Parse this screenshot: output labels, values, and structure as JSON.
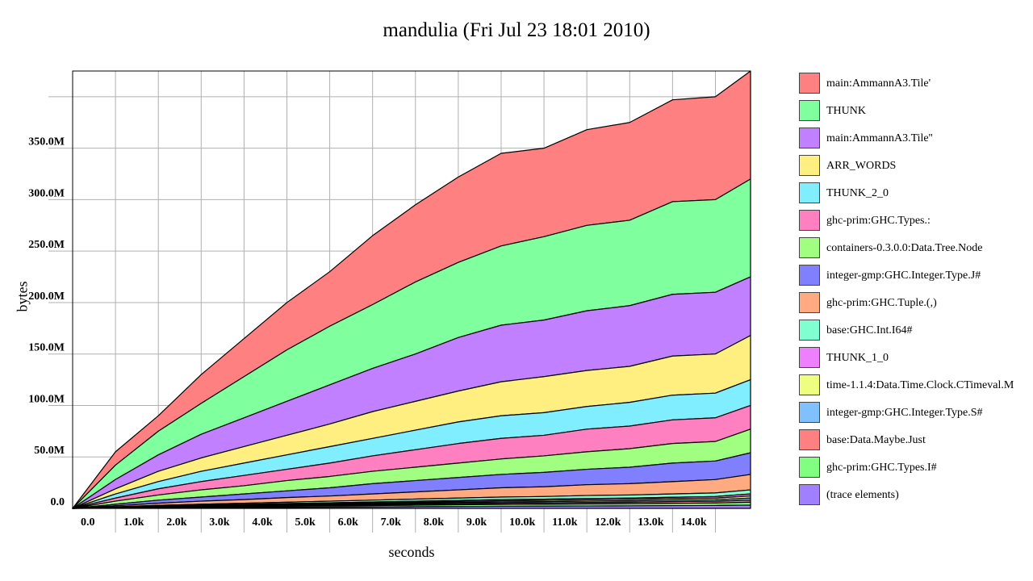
{
  "chart_data": {
    "type": "area",
    "title": "mandulia (Fri Jul 23 18:01 2010)",
    "xlabel": "seconds",
    "ylabel": "bytes",
    "x_ticks": [
      "0.0",
      "1.0k",
      "2.0k",
      "3.0k",
      "4.0k",
      "5.0k",
      "6.0k",
      "7.0k",
      "8.0k",
      "9.0k",
      "10.0k",
      "11.0k",
      "12.0k",
      "13.0k",
      "14.0k"
    ],
    "y_ticks": [
      "0.0",
      "50.0M",
      "100.0M",
      "150.0M",
      "200.0M",
      "250.0M",
      "300.0M",
      "350.0M"
    ],
    "xlim": [
      0,
      15820
    ],
    "ylim": [
      0,
      425000000
    ],
    "x": [
      0,
      1000,
      2000,
      3000,
      4000,
      5000,
      6000,
      7000,
      8000,
      9000,
      10000,
      11000,
      12000,
      13000,
      14000,
      15000,
      15820
    ],
    "series": [
      {
        "name": "main:AmmannA3.Tile'",
        "color": "#ff8080",
        "values": [
          0,
          55,
          90,
          130,
          165,
          200,
          230,
          265,
          295,
          322,
          345,
          350,
          368,
          375,
          397,
          400,
          425
        ]
      },
      {
        "name": "THUNK",
        "color": "#80ff9f",
        "values": [
          0,
          42,
          75,
          102,
          128,
          154,
          177,
          198,
          220,
          239,
          255,
          264,
          275,
          280,
          298,
          300,
          320
        ]
      },
      {
        "name": "main:AmmannA3.Tile''",
        "color": "#c080ff",
        "values": [
          0,
          28,
          52,
          72,
          88,
          104,
          120,
          136,
          150,
          166,
          178,
          183,
          192,
          197,
          208,
          210,
          225
        ]
      },
      {
        "name": "ARR_WORDS",
        "color": "#ffee80",
        "values": [
          0,
          19,
          36,
          49,
          60,
          71,
          82,
          94,
          104,
          114,
          123,
          128,
          134,
          138,
          148,
          150,
          168
        ]
      },
      {
        "name": "THUNK_2_0",
        "color": "#80eeff",
        "values": [
          0,
          14,
          26,
          36,
          44,
          52,
          60,
          68,
          76,
          84,
          90,
          93,
          99,
          103,
          110,
          112,
          125
        ]
      },
      {
        "name": "ghc-prim:GHC.Types.:",
        "color": "#ff80c0",
        "values": [
          0,
          10,
          19,
          26,
          32,
          38,
          44,
          51,
          57,
          63,
          68,
          71,
          77,
          80,
          86,
          88,
          100
        ]
      },
      {
        "name": "containers-0.3.0.0:Data.Tree.Node",
        "color": "#a0ff80",
        "values": [
          0,
          7,
          13,
          18,
          22,
          27,
          31,
          36,
          40,
          44,
          48,
          51,
          55,
          58,
          63,
          65,
          77
        ]
      },
      {
        "name": "integer-gmp:GHC.Integer.Type.J#",
        "color": "#8080ff",
        "values": [
          0,
          4,
          8,
          11,
          14,
          17,
          20,
          24,
          27,
          30,
          33,
          35,
          38,
          40,
          44,
          46,
          54
        ]
      },
      {
        "name": "ghc-prim:GHC.Tuple.(,)",
        "color": "#ffaa80",
        "values": [
          0,
          2.5,
          5,
          7,
          8.5,
          10.5,
          12,
          14,
          16,
          18,
          20,
          21,
          23,
          24,
          26,
          28,
          33
        ]
      },
      {
        "name": "base:GHC.Int.I64#",
        "color": "#80ffd0",
        "values": [
          0,
          1.5,
          3,
          4,
          5,
          6,
          7,
          8,
          9,
          10,
          11,
          11.5,
          12.5,
          13,
          14,
          15,
          18
        ]
      },
      {
        "name": "THUNK_1_0",
        "color": "#ee80ff",
        "values": [
          0,
          1.2,
          2.3,
          3.1,
          3.9,
          4.7,
          5.4,
          6.2,
          7,
          7.8,
          8.5,
          8.9,
          9.6,
          10,
          10.8,
          11.5,
          14
        ]
      },
      {
        "name": "time-1.1.4:Data.Time.Clock.CTimeval.M",
        "color": "#eeff80",
        "values": [
          0,
          1,
          1.9,
          2.6,
          3.3,
          4,
          4.6,
          5.3,
          6,
          6.7,
          7.3,
          7.7,
          8.3,
          8.7,
          9.4,
          10,
          12
        ]
      },
      {
        "name": "integer-gmp:GHC.Integer.Type.S#",
        "color": "#80c0ff",
        "values": [
          0,
          0.8,
          1.6,
          2.2,
          2.8,
          3.4,
          3.9,
          4.5,
          5.1,
          5.7,
          6.2,
          6.5,
          7,
          7.3,
          7.9,
          8.4,
          10
        ]
      },
      {
        "name": "base:Data.Maybe.Just",
        "color": "#ff8080",
        "values": [
          0,
          0.6,
          1.2,
          1.7,
          2.2,
          2.7,
          3.1,
          3.6,
          4.1,
          4.6,
          5,
          5.3,
          5.7,
          6,
          6.5,
          6.9,
          8
        ]
      },
      {
        "name": "ghc-prim:GHC.Types.I#",
        "color": "#80ff80",
        "values": [
          0,
          0.4,
          0.8,
          1.2,
          1.6,
          2,
          2.3,
          2.7,
          3.1,
          3.5,
          3.8,
          4,
          4.3,
          4.5,
          4.9,
          5.2,
          6
        ]
      },
      {
        "name": "(trace elements)",
        "color": "#a080ff",
        "values": [
          0,
          0.2,
          0.4,
          0.6,
          0.8,
          1,
          1.2,
          1.4,
          1.6,
          1.8,
          2,
          2.1,
          2.3,
          2.4,
          2.6,
          2.8,
          3.2
        ]
      }
    ],
    "value_unit": "M (cumulative top of each band)",
    "grid": true,
    "legend_position": "right"
  }
}
